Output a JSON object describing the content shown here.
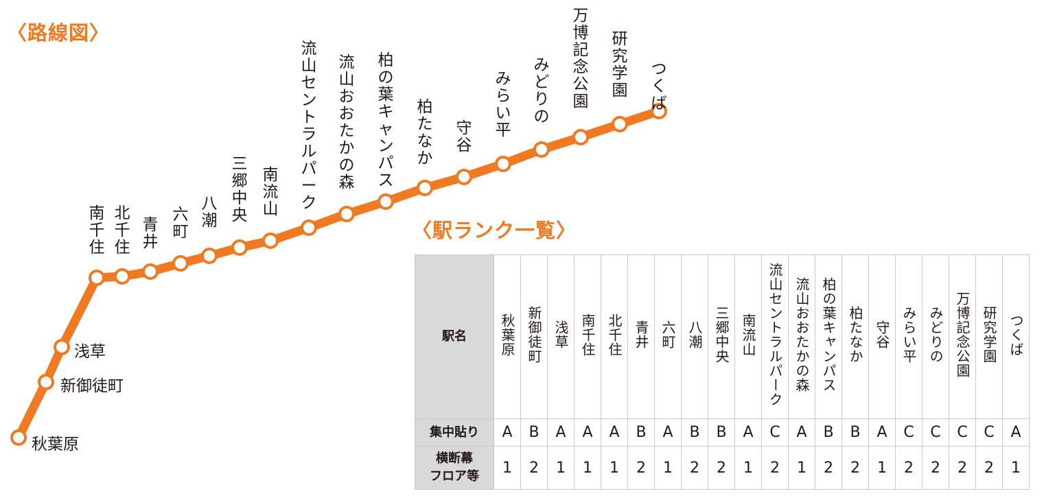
{
  "route_title": "〈路線図〉",
  "rank_title": "〈駅ランク一覧〉",
  "colors": {
    "line": "#ef7a22",
    "station_fill": "#ffffff",
    "header_bg": "#d9d9da"
  },
  "stations": [
    {
      "name": "秋葉原",
      "rank": "A",
      "floor": "1"
    },
    {
      "name": "新御徒町",
      "rank": "B",
      "floor": "2"
    },
    {
      "name": "浅草",
      "rank": "A",
      "floor": "1"
    },
    {
      "name": "南千住",
      "rank": "A",
      "floor": "1"
    },
    {
      "name": "北千住",
      "rank": "A",
      "floor": "1"
    },
    {
      "name": "青井",
      "rank": "B",
      "floor": "2"
    },
    {
      "name": "六町",
      "rank": "A",
      "floor": "1"
    },
    {
      "name": "八潮",
      "rank": "B",
      "floor": "2"
    },
    {
      "name": "三郷中央",
      "rank": "B",
      "floor": "2"
    },
    {
      "name": "南流山",
      "rank": "A",
      "floor": "1"
    },
    {
      "name": "流山セントラルパーク",
      "rank": "C",
      "floor": "2"
    },
    {
      "name": "流山おおたかの森",
      "rank": "A",
      "floor": "1"
    },
    {
      "name": "柏の葉キャンパス",
      "rank": "B",
      "floor": "2"
    },
    {
      "name": "柏たなか",
      "rank": "B",
      "floor": "2"
    },
    {
      "name": "守谷",
      "rank": "A",
      "floor": "1"
    },
    {
      "name": "みらい平",
      "rank": "C",
      "floor": "2"
    },
    {
      "name": "みどりの",
      "rank": "C",
      "floor": "2"
    },
    {
      "name": "万博記念公園",
      "rank": "C",
      "floor": "2"
    },
    {
      "name": "研究学園",
      "rank": "C",
      "floor": "2"
    },
    {
      "name": "つくば",
      "rank": "A",
      "floor": "1"
    }
  ],
  "table": {
    "header": "駅名",
    "row_rank_label": "集中貼り",
    "row_floor_label_line1": "横断幕",
    "row_floor_label_line2": "フロア等"
  }
}
